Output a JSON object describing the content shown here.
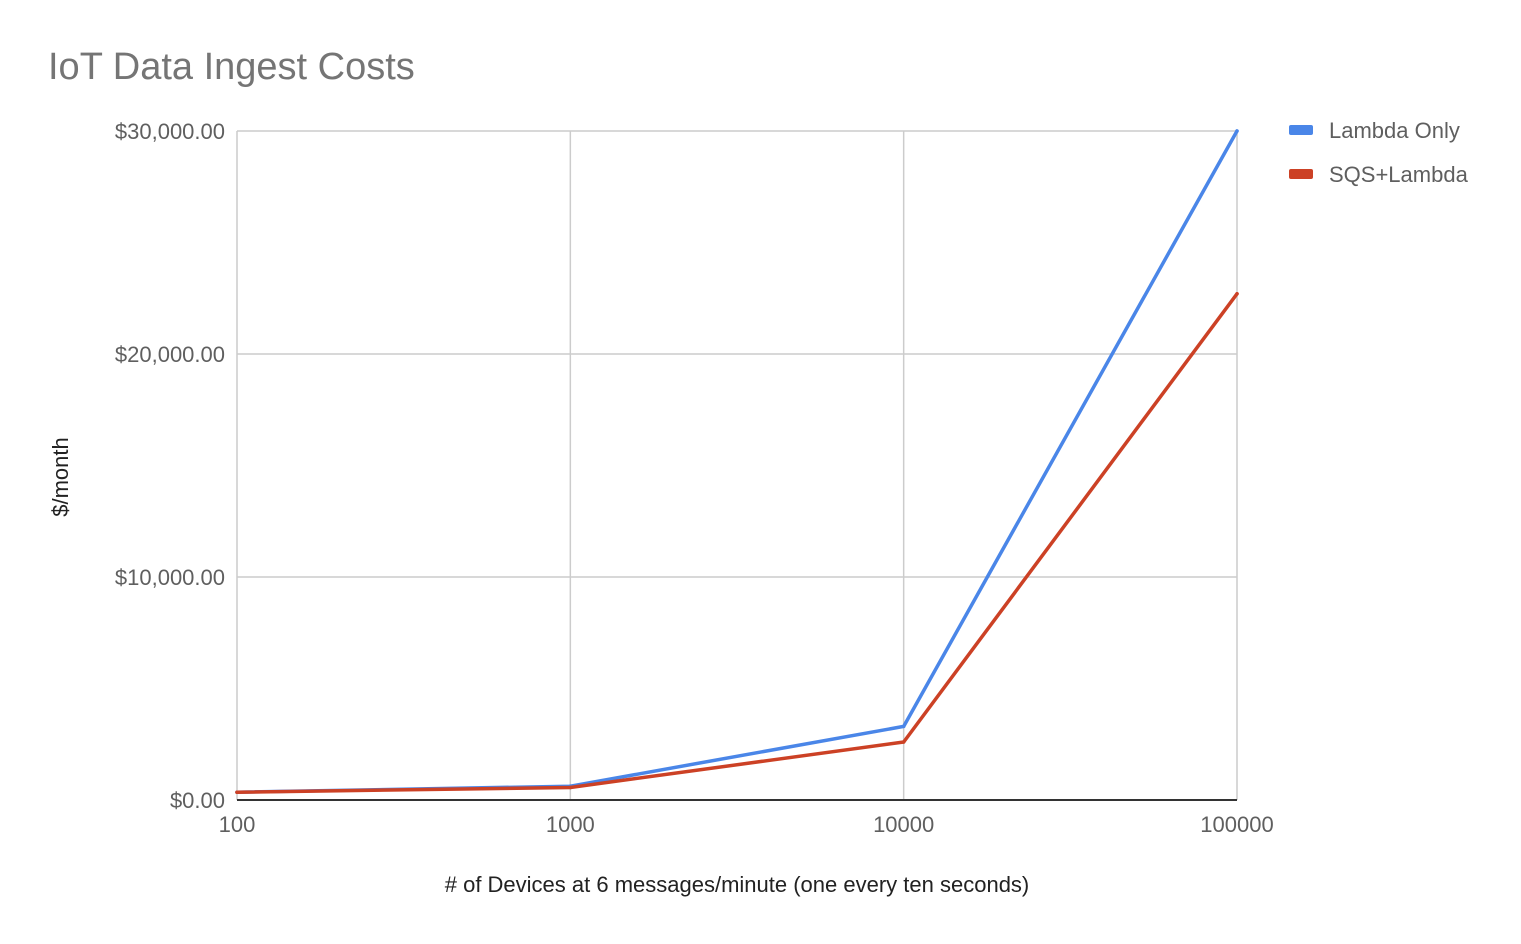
{
  "chart_data": {
    "type": "line",
    "title": "IoT Data Ingest Costs",
    "xlabel": "# of Devices at 6 messages/minute (one every ten seconds)",
    "ylabel": "$/month",
    "x_scale": "log",
    "categories": [
      "100",
      "1000",
      "10000",
      "100000"
    ],
    "x": [
      100,
      1000,
      10000,
      100000
    ],
    "ylim": [
      0,
      30000
    ],
    "y_ticks": [
      0,
      10000,
      20000,
      30000
    ],
    "y_tick_labels": [
      "$0.00",
      "$10,000.00",
      "$20,000.00",
      "$30,000.00"
    ],
    "grid": true,
    "legend_position": "right",
    "series": [
      {
        "name": "Lambda Only",
        "color": "#4a86e8",
        "values": [
          350,
          620,
          3300,
          30000
        ]
      },
      {
        "name": "SQS+Lambda",
        "color": "#cc4125",
        "values": [
          350,
          560,
          2600,
          22700
        ]
      }
    ]
  },
  "colors": {
    "gridline": "#cccccc",
    "baseline": "#333333",
    "title": "#757575",
    "tick_label": "#5f5f5f"
  }
}
